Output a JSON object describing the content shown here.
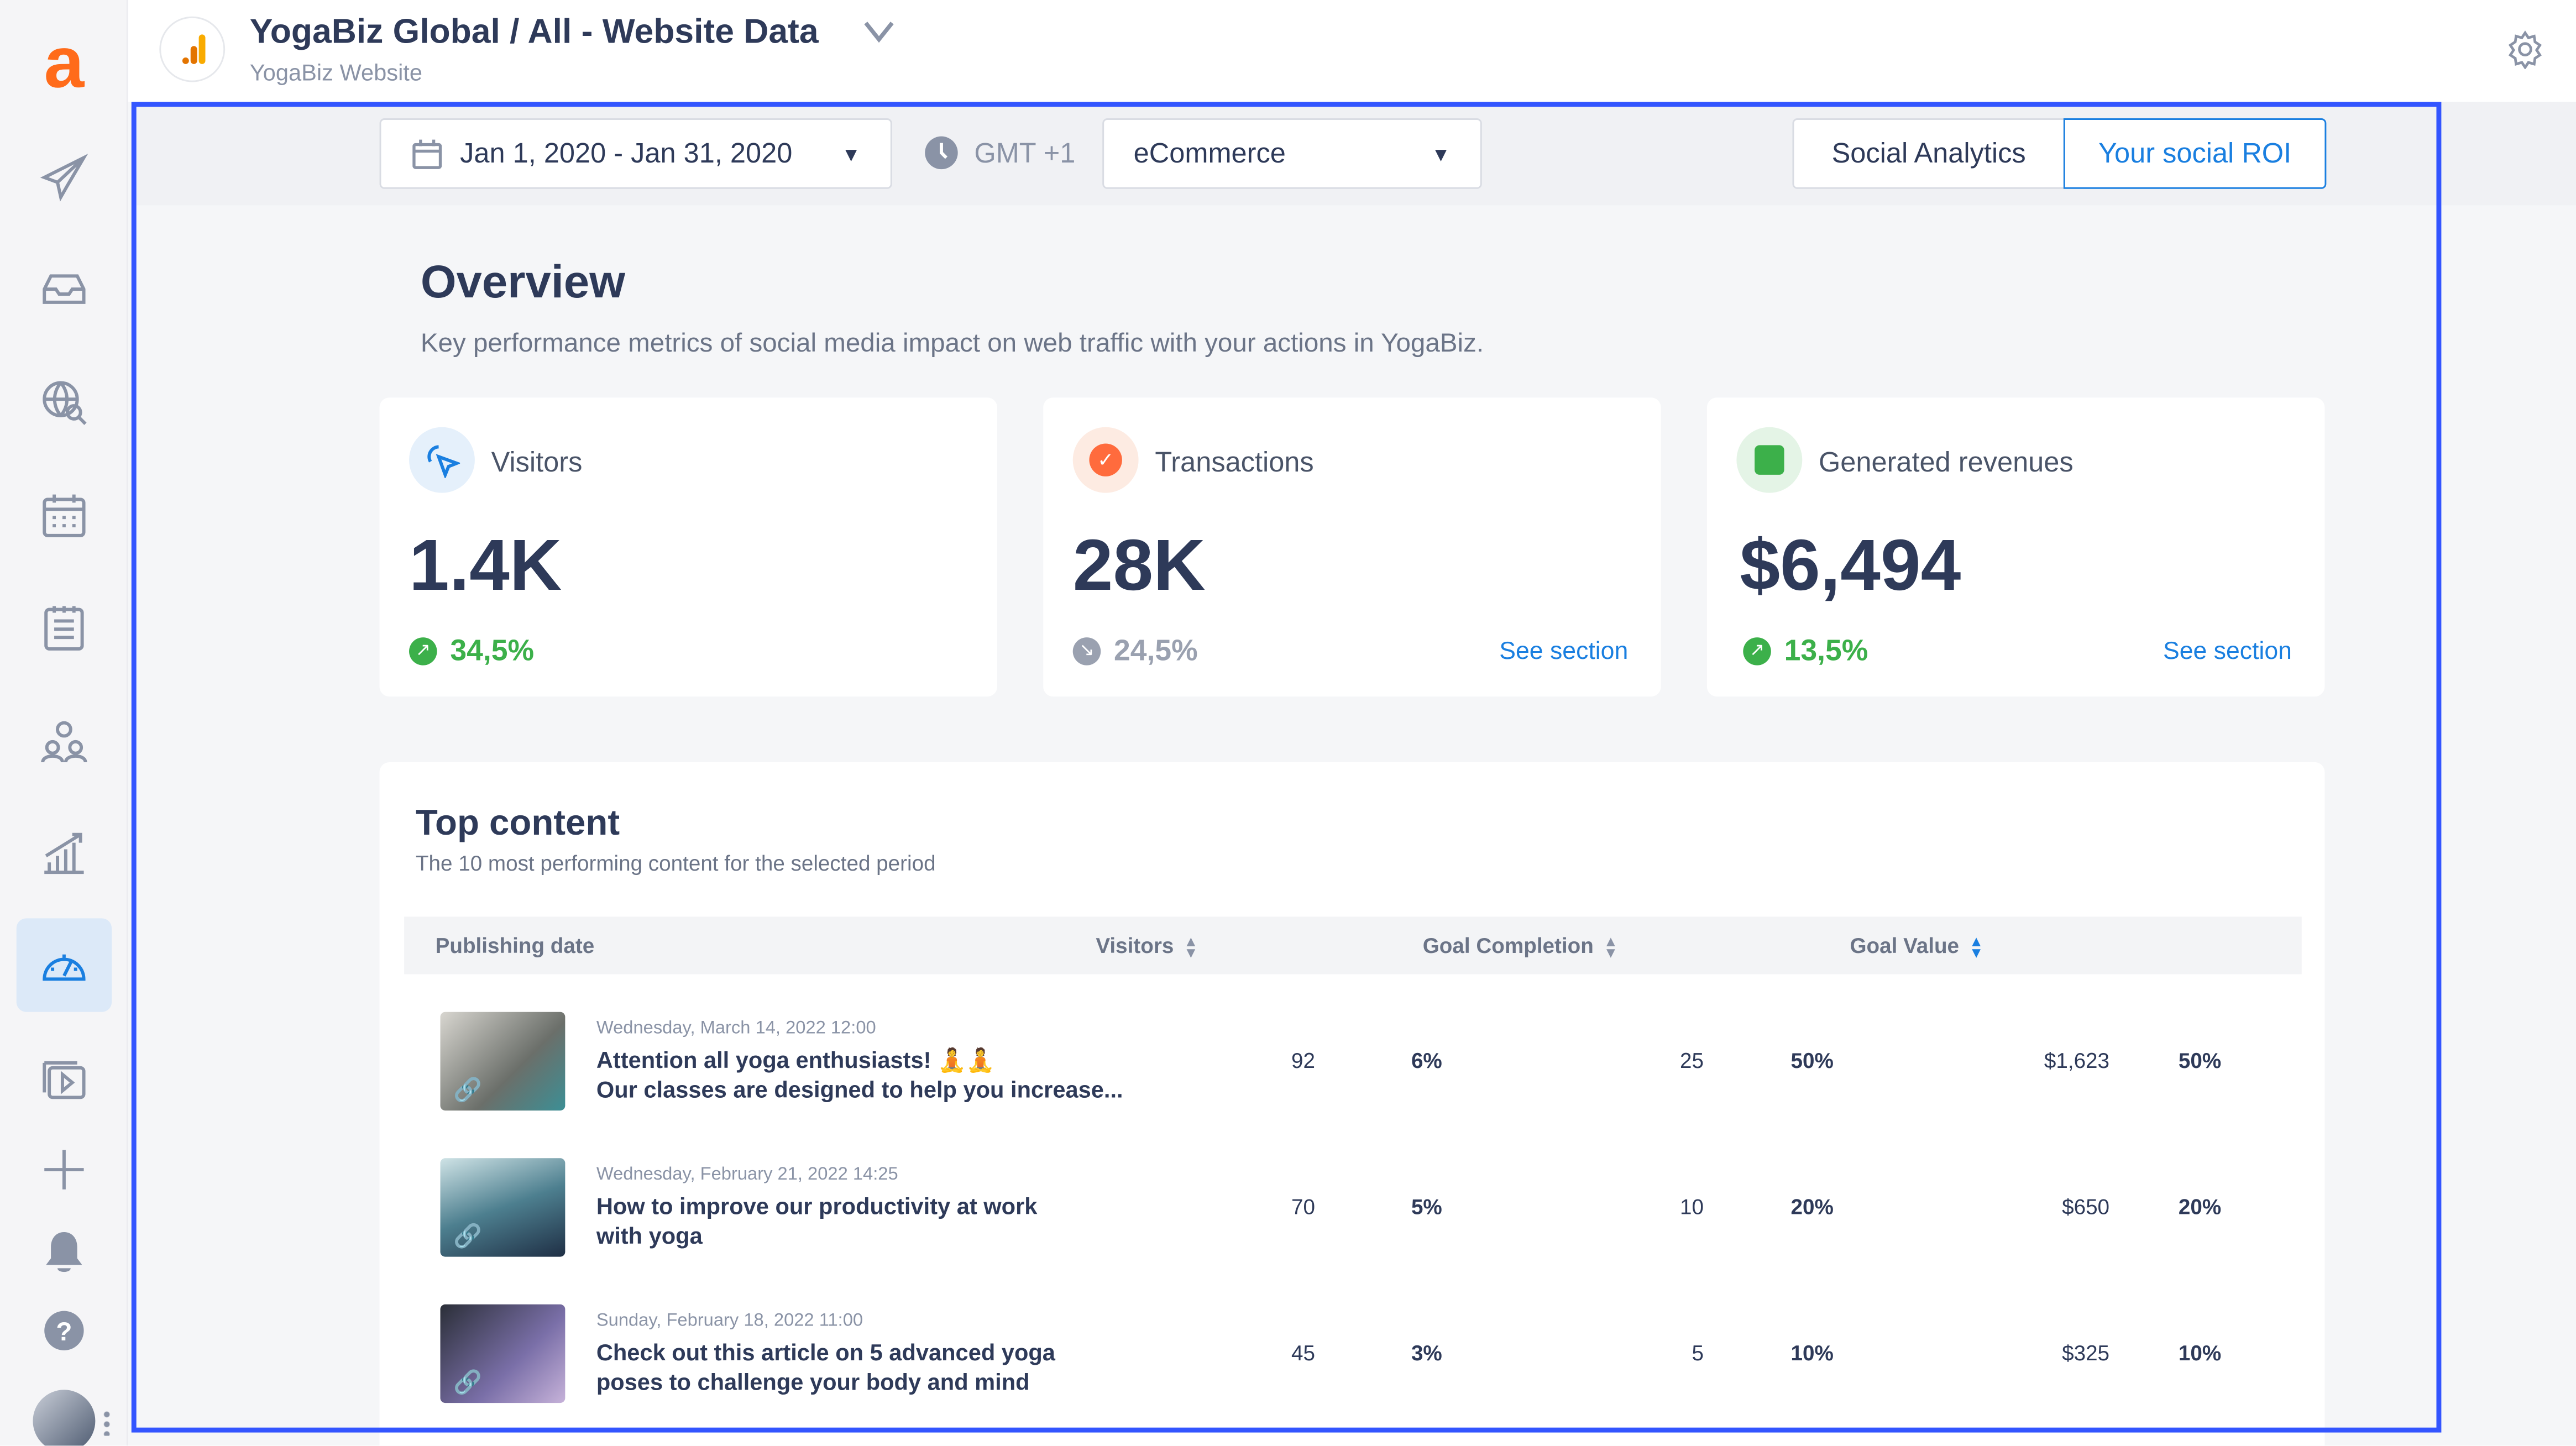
{
  "header": {
    "title": "YogaBiz Global / All - Website Data",
    "subtitle": "YogaBiz Website"
  },
  "filters": {
    "date_range": "Jan 1, 2020 - Jan 31, 2020",
    "timezone": "GMT +1",
    "view": "eCommerce"
  },
  "tabs": [
    {
      "label": "Social Analytics",
      "active": false
    },
    {
      "label": "Your social ROI",
      "active": true
    }
  ],
  "overview": {
    "title": "Overview",
    "description": "Key performance metrics of social media impact on web traffic with your actions in YogaBiz."
  },
  "cards": [
    {
      "label": "Visitors",
      "value": "1.4K",
      "change": "34,5%",
      "trend": "up",
      "link": ""
    },
    {
      "label": "Transactions",
      "value": "28K",
      "change": "24,5%",
      "trend": "down",
      "link": "See section"
    },
    {
      "label": "Generated revenues",
      "value": "$6,494",
      "change": "13,5%",
      "trend": "up",
      "link": "See section"
    }
  ],
  "top_content": {
    "title": "Top content",
    "subtitle": "The 10 most performing content for the selected period",
    "columns": [
      "Publishing date",
      "Visitors",
      "Goal Completion",
      "Goal Value"
    ],
    "rows": [
      {
        "date": "Wednesday, March 14, 2022 12:00",
        "line1": "Attention all yoga enthusiasts! 🧘🧘",
        "line2": "Our classes are designed to help you increase...",
        "visitors": "92",
        "visitors_pct": "6%",
        "goal": "25",
        "goal_pct": "50%",
        "value": "$1,623",
        "value_pct": "50%"
      },
      {
        "date": "Wednesday, February 21, 2022 14:25",
        "line1": "How to improve our productivity at work",
        "line2": "with yoga",
        "visitors": "70",
        "visitors_pct": "5%",
        "goal": "10",
        "goal_pct": "20%",
        "value": "$650",
        "value_pct": "20%"
      },
      {
        "date": "Sunday, February 18, 2022 11:00",
        "line1": "Check out this article on 5 advanced yoga",
        "line2": "poses to challenge your body and mind",
        "visitors": "45",
        "visitors_pct": "3%",
        "goal": "5",
        "goal_pct": "10%",
        "value": "$325",
        "value_pct": "10%"
      }
    ]
  },
  "colors": {
    "accent": "#1a7fe0",
    "up": "#3cb04a",
    "down": "#9aa1b0",
    "brand": "#ff6b1a",
    "frame": "#3355ff"
  }
}
